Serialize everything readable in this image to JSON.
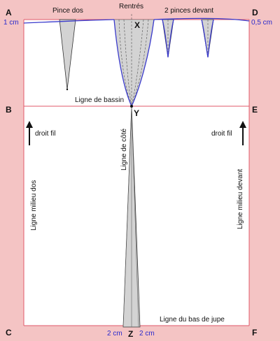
{
  "points": {
    "A": "A",
    "B": "B",
    "C": "C",
    "D": "D",
    "E": "E",
    "F": "F",
    "X": "X",
    "Y": "Y",
    "Z": "Z"
  },
  "labels": {
    "pince_dos": "Pince dos",
    "rentres": "Rentrés",
    "pinces_devant": "2 pinces devant",
    "rise_left": "1 cm",
    "rise_right": "0,5 cm",
    "ligne_bassin": "Ligne de bassin",
    "droit_fil_left": "droit fil",
    "droit_fil_right": "droit fil",
    "ligne_cote": "Ligne de côté",
    "milieu_dos": "Ligne milieu dos",
    "milieu_devant": "Ligne milieu devant",
    "bas_jupe": "Ligne du bas de jupe",
    "cm_left": "2 cm",
    "cm_right": "2 cm"
  },
  "colors": {
    "background": "#f4c4c4",
    "panel": "#ffffff",
    "frame": "#e05a6a",
    "curve": "#3a3acc",
    "dart_fill": "#d3d3d3",
    "text": "#111111",
    "measure_text": "#2a2acc"
  }
}
